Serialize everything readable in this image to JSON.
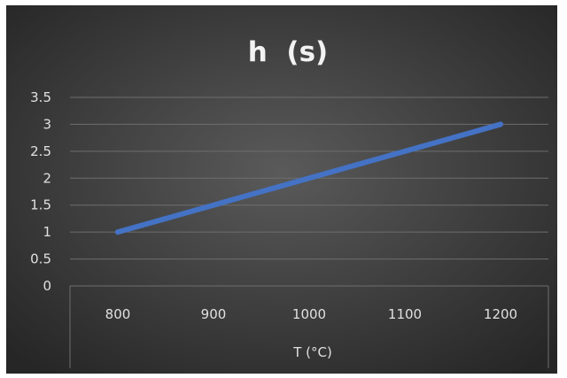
{
  "chart_data": {
    "type": "line",
    "title": "h  (s)",
    "xlabel": "T (°C)",
    "ylabel": "",
    "categories": [
      "800",
      "900",
      "1000",
      "1100",
      "1200"
    ],
    "series": [
      {
        "values": [
          1,
          1.5,
          2,
          2.5,
          3
        ]
      }
    ],
    "ylim": [
      0,
      3.5
    ],
    "yticks": [
      "0",
      "0.5",
      "1",
      "1.5",
      "2",
      "2.5",
      "3",
      "3.5"
    ],
    "grid": true,
    "legend": "none"
  },
  "colors": {
    "background_center": "#5a5a5a",
    "background_edge": "#262626",
    "line": "#4472c4",
    "grid": "#6e6e6e",
    "text": "#e0e0e0",
    "title": "#f2f2f2"
  }
}
